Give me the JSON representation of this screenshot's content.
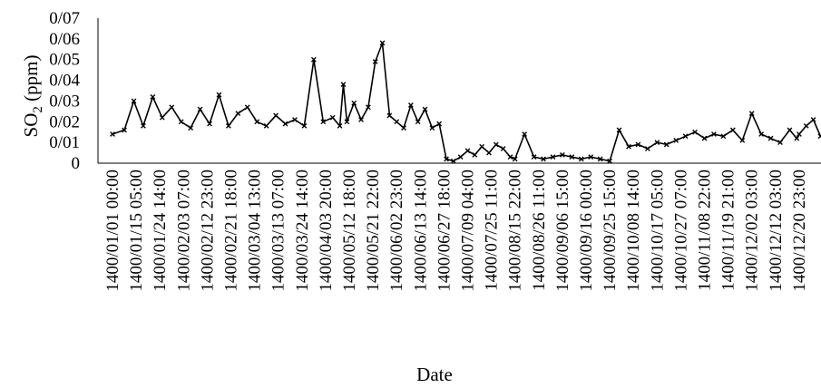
{
  "chart_data": {
    "type": "line",
    "xlabel": "Date",
    "ylabel": {
      "main": "SO",
      "sub": "2",
      "rest": " (ppm)"
    },
    "ylim": [
      0,
      0.07
    ],
    "y_ticks": [
      "0",
      "0/01",
      "0/02",
      "0/03",
      "0/04",
      "0/05",
      "0/06",
      "0/07"
    ],
    "x_ticks": [
      "1400/01/01 00:00",
      "1400/01/15 05:00",
      "1400/01/24 14:00",
      "1400/02/03 07:00",
      "1400/02/12 23:00",
      "1400/02/21 18:00",
      "1400/03/04 13:00",
      "1400/03/13 07:00",
      "1400/03/24 14:00",
      "1400/04/03 20:00",
      "1400/05/12 18:00",
      "1400/05/21 22:00",
      "1400/06/02 23:00",
      "1400/06/13 14:00",
      "1400/06/27 18:00",
      "1400/07/09 04:00",
      "1400/07/25 11:00",
      "1400/08/15 22:00",
      "1400/08/26 11:00",
      "1400/09/06 15:00",
      "1400/09/16 00:00",
      "1400/09/25 15:00",
      "1400/10/08 14:00",
      "1400/10/17 05:00",
      "1400/10/27 07:00",
      "1400/11/08 22:00",
      "1400/11/19 21:00",
      "1400/12/02 03:00",
      "1400/12/12 03:00",
      "1400/12/20 23:00"
    ],
    "grid": false,
    "legend": "none",
    "series": [
      {
        "color": "#000000",
        "marker": "x",
        "x": [
          0,
          0.5,
          0.9,
          1.3,
          1.7,
          2.1,
          2.5,
          2.9,
          3.3,
          3.7,
          4.1,
          4.5,
          4.9,
          5.3,
          5.7,
          6.1,
          6.5,
          6.9,
          7.3,
          7.7,
          8.1,
          8.5,
          8.9,
          9.3,
          9.6,
          9.75,
          9.9,
          10.2,
          10.5,
          10.8,
          11.1,
          11.4,
          11.7,
          12.0,
          12.3,
          12.6,
          12.9,
          13.2,
          13.5,
          13.8,
          14.1,
          14.4,
          14.7,
          15.0,
          15.3,
          15.6,
          15.9,
          16.2,
          16.5,
          16.8,
          17.0,
          17.4,
          17.8,
          18.2,
          18.6,
          19.0,
          19.4,
          19.8,
          20.2,
          20.6,
          21.0,
          21.4,
          21.8,
          22.2,
          22.6,
          23.0,
          23.4,
          23.8,
          24.2,
          24.6,
          25.0,
          25.4,
          25.8,
          26.2,
          26.6,
          27.0,
          27.4,
          27.8,
          28.2,
          28.6,
          28.9,
          29.0,
          29.3,
          29.6,
          29.9
        ],
        "y": [
          0.014,
          0.016,
          0.03,
          0.018,
          0.032,
          0.022,
          0.027,
          0.02,
          0.017,
          0.026,
          0.019,
          0.033,
          0.018,
          0.024,
          0.027,
          0.02,
          0.018,
          0.023,
          0.019,
          0.021,
          0.018,
          0.05,
          0.02,
          0.022,
          0.018,
          0.038,
          0.02,
          0.029,
          0.021,
          0.027,
          0.049,
          0.058,
          0.023,
          0.02,
          0.017,
          0.028,
          0.02,
          0.026,
          0.017,
          0.019,
          0.002,
          0.001,
          0.003,
          0.006,
          0.004,
          0.008,
          0.005,
          0.009,
          0.007,
          0.003,
          0.002,
          0.014,
          0.003,
          0.002,
          0.003,
          0.004,
          0.003,
          0.002,
          0.003,
          0.002,
          0.001,
          0.016,
          0.008,
          0.009,
          0.007,
          0.01,
          0.009,
          0.011,
          0.013,
          0.015,
          0.012,
          0.014,
          0.013,
          0.016,
          0.011,
          0.024,
          0.014,
          0.012,
          0.01,
          0.016,
          0.012,
          0.014,
          0.018,
          0.021,
          0.013
        ]
      }
    ]
  }
}
